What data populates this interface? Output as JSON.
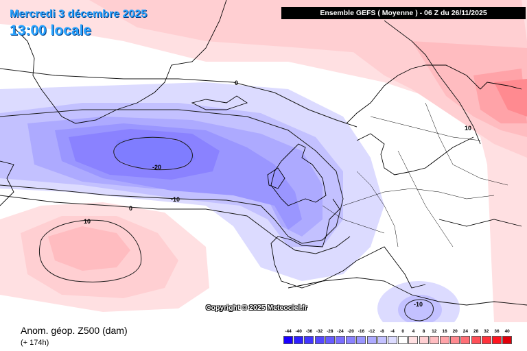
{
  "header": {
    "date": "Mercredi 3 décembre 2025",
    "local_time": "13:00 locale",
    "run_info": "Ensemble GEFS  ( Moyenne )  -  06 Z du 26/11/2025"
  },
  "copyright": "Copyright © 2025 Meteociel.fr",
  "footer": {
    "field": "Anom. géop. Z500 (dam)",
    "lead_time": "(+ 174h)"
  },
  "contour_labels": [
    "0",
    "-20",
    "-10",
    "0",
    "10",
    "10",
    "-10"
  ],
  "colorscale": {
    "values": [
      "-44",
      "-40",
      "-36",
      "-32",
      "-28",
      "-24",
      "-20",
      "-16",
      "-12",
      "-8",
      "-4",
      "0",
      "4",
      "8",
      "12",
      "16",
      "20",
      "24",
      "28",
      "32",
      "36",
      "40"
    ],
    "colors": [
      "#1a00ff",
      "#2e20ff",
      "#4236ff",
      "#5548ff",
      "#675cff",
      "#7a6eff",
      "#8a82ff",
      "#9a96ff",
      "#adaaff",
      "#c3c1ff",
      "#dcdbff",
      "#ffffff",
      "#ffe0e2",
      "#ffcfd2",
      "#ffbcc0",
      "#ffa3a8",
      "#ff8a90",
      "#ff6f76",
      "#ff5058",
      "#ff323b",
      "#ff141f",
      "#e0000b"
    ]
  },
  "colors": {
    "title": "#29a3ff",
    "negative_fill": "#7f7dff",
    "positive_fill": "#ffb2b7"
  }
}
